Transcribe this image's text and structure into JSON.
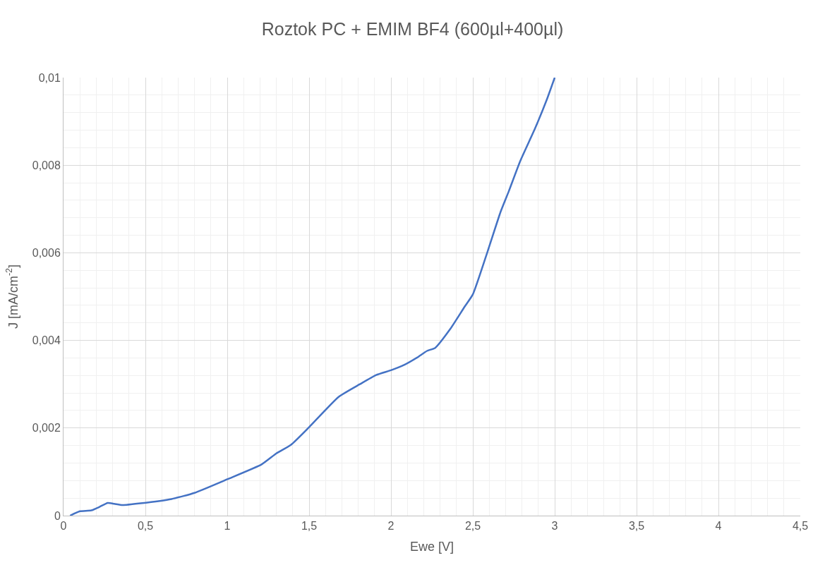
{
  "chart_data": {
    "type": "line",
    "title": "Roztok PC + EMIM BF4 (600µl+400µl)",
    "xlabel": "Ewe [V]",
    "ylabel": "J [mA/cm$^{-2}$]",
    "x": [
      0.04,
      0.1,
      0.17,
      0.22,
      0.27,
      0.31,
      0.36,
      0.47,
      0.66,
      0.8,
      1.0,
      1.21,
      1.3,
      1.39,
      1.5,
      1.68,
      1.81,
      1.91,
      2.0,
      2.08,
      2.16,
      2.22,
      2.27,
      2.36,
      2.45,
      2.5,
      2.59,
      2.67,
      2.72,
      2.79,
      2.88,
      2.95,
      3.0
    ],
    "series": [
      {
        "color": "#4472c4",
        "values": [
          0,
          0.0001,
          0.00012,
          0.0002,
          0.00029,
          0.00027,
          0.00024,
          0.00028,
          0.00038,
          0.00052,
          0.00083,
          0.00117,
          0.00142,
          0.00162,
          0.00202,
          0.00271,
          0.003,
          0.00321,
          0.00332,
          0.00344,
          0.00361,
          0.00376,
          0.00383,
          0.00425,
          0.00477,
          0.00505,
          0.00603,
          0.00694,
          0.00741,
          0.0081,
          0.00884,
          0.00948,
          0.01
        ]
      }
    ],
    "xlim": [
      0,
      4.5
    ],
    "xticks": [
      {
        "value": 0,
        "label": "0"
      },
      {
        "value": 0.5,
        "label": "0,5"
      },
      {
        "value": 1,
        "label": "1"
      },
      {
        "value": 1.5,
        "label": "1,5"
      },
      {
        "value": 2,
        "label": "2"
      },
      {
        "value": 2.5,
        "label": "2,5"
      },
      {
        "value": 3,
        "label": "3"
      },
      {
        "value": 3.5,
        "label": "3,5"
      },
      {
        "value": 4,
        "label": "4"
      },
      {
        "value": 4.5,
        "label": "4,5"
      }
    ],
    "ylim": [
      0,
      0.01
    ],
    "yticks": [
      {
        "value": 0,
        "label": "0"
      },
      {
        "value": 0.002,
        "label": "0,002"
      },
      {
        "value": 0.004,
        "label": "0,004"
      },
      {
        "value": 0.006,
        "label": "0,006"
      },
      {
        "value": 0.008,
        "label": "0,008"
      },
      {
        "value": 0.01,
        "label": "0,01"
      }
    ],
    "grid": true,
    "marker": "none",
    "line_style": "solid"
  }
}
